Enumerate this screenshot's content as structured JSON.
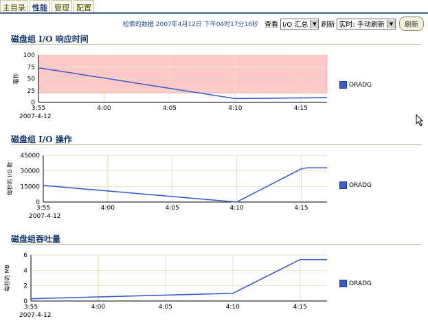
{
  "tabs": [
    "主目录",
    "性能",
    "管理",
    "配置"
  ],
  "active_tab": 1,
  "toolbar": {
    "retrieved": "检索的数据 2007年4月12日 下午04时17分16秒",
    "view_label": "查看",
    "view_value": "I/O 汇总",
    "refresh_label": "刷新",
    "refresh_value": "实时: 手动刷新",
    "refresh_button": "刷新"
  },
  "sections": [
    {
      "title": "磁盘组 I/O 响应时间"
    },
    {
      "title": "磁盘组 I/O 操作"
    },
    {
      "title": "磁盘组吞吐量"
    }
  ],
  "chart_data": [
    {
      "type": "line",
      "ylabel": "毫秒",
      "ylim": [
        0,
        100
      ],
      "yticks": [
        0,
        25,
        50,
        75,
        100
      ],
      "xlim": [
        0,
        22
      ],
      "xticks": [
        {
          "v": 0,
          "label": "3:55"
        },
        {
          "v": 5,
          "label": "4:00"
        },
        {
          "v": 10,
          "label": "4:05"
        },
        {
          "v": 15,
          "label": "4:10"
        },
        {
          "v": 20,
          "label": "4:15"
        }
      ],
      "date_label": "2007-4-12",
      "band": [
        20,
        100
      ],
      "band_color": "#ffc8c8",
      "series": [
        {
          "name": "ORADG",
          "color": "#3a5fcd",
          "x": [
            0,
            15,
            22
          ],
          "y": [
            73,
            8,
            10
          ]
        }
      ]
    },
    {
      "type": "line",
      "ylabel": "每秒的 I/O 数",
      "ylim": [
        0,
        45000
      ],
      "yticks": [
        0,
        15000,
        30000,
        45000
      ],
      "xlim": [
        0,
        22
      ],
      "xticks": [
        {
          "v": 0,
          "label": "3:55"
        },
        {
          "v": 5,
          "label": "4:00"
        },
        {
          "v": 10,
          "label": "4:05"
        },
        {
          "v": 15,
          "label": "4:10"
        },
        {
          "v": 20,
          "label": "4:15"
        }
      ],
      "date_label": "2007-4-12",
      "series": [
        {
          "name": "ORADG",
          "color": "#3a5fcd",
          "x": [
            0,
            15,
            20,
            20.5,
            22
          ],
          "y": [
            16000,
            0,
            32000,
            33000,
            33000
          ]
        }
      ]
    },
    {
      "type": "line",
      "ylabel": "每秒的 MB",
      "ylim": [
        0,
        6
      ],
      "yticks": [
        0,
        2,
        4,
        6
      ],
      "xlim": [
        0,
        22
      ],
      "xticks": [
        {
          "v": 0,
          "label": "3:55"
        },
        {
          "v": 5,
          "label": "4:00"
        },
        {
          "v": 10,
          "label": "4:05"
        },
        {
          "v": 15,
          "label": "4:10"
        },
        {
          "v": 20,
          "label": "4:15"
        }
      ],
      "date_label": "2007-4-12",
      "series": [
        {
          "name": "ORADG",
          "color": "#3a5fcd",
          "x": [
            0,
            15,
            20,
            22
          ],
          "y": [
            0.3,
            1.0,
            5.4,
            5.4
          ]
        }
      ]
    }
  ]
}
